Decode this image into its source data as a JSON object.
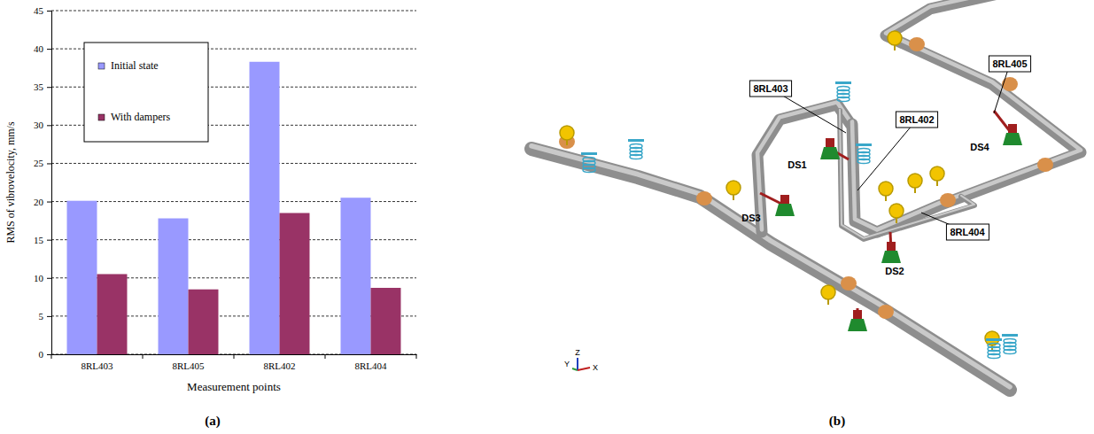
{
  "chart_data": {
    "type": "bar",
    "x_label": "Measurement points",
    "y_label": "RMS of vibrovelocity, mm/s",
    "categories": [
      "8RL403",
      "8RL405",
      "8RL402",
      "8RL404"
    ],
    "series": [
      {
        "name": "Initial state",
        "color": "#9999ff",
        "values": [
          20.1,
          17.8,
          38.3,
          20.5
        ]
      },
      {
        "name": "With dampers",
        "color": "#993366",
        "values": [
          10.5,
          8.5,
          18.5,
          8.7
        ]
      }
    ],
    "ylim": [
      0,
      45
    ],
    "yticks": [
      0,
      5,
      10,
      15,
      20,
      25,
      30,
      35,
      40,
      45
    ],
    "grid": true,
    "legend": "upper left"
  },
  "panels": [
    "(a)",
    "(b)"
  ],
  "diagram": {
    "labels": [
      "8RL405",
      "8RL403",
      "8RL402",
      "8RL404"
    ],
    "dampers": [
      "DS1",
      "DS3",
      "DS4",
      "DS2"
    ],
    "axes": [
      "Y",
      "Z",
      "X"
    ]
  }
}
